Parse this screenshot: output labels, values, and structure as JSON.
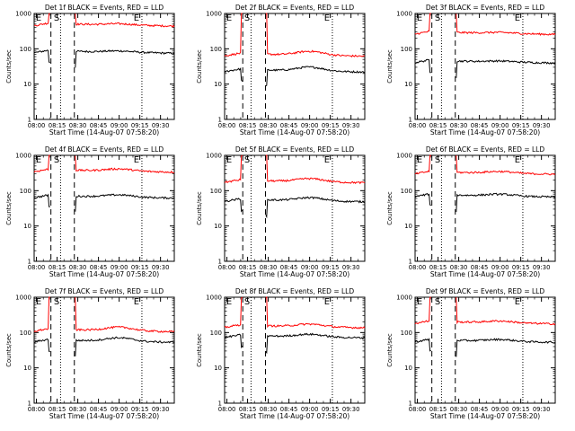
{
  "figure": {
    "x_tick_labels": [
      "08:00",
      "08:15",
      "08:30",
      "08:45",
      "09:00",
      "09:15",
      "09:30"
    ],
    "y_tick_labels": [
      "1",
      "10",
      "100",
      "1000"
    ],
    "xlabel": "Start Time (14-Aug-07 07:58:20)",
    "ylabel": "Counts/sec",
    "marker_E": "E",
    "marker_S": "S",
    "colors": {
      "events": "#000000",
      "lld": "#ff0000",
      "axes": "#000000"
    }
  },
  "chart_data": [
    {
      "type": "line",
      "title": "Det 1f BLACK = Events, RED = LLD",
      "xlabel": "Start Time (14-Aug-07 07:58:20)",
      "ylabel": "Counts/sec",
      "xlim": [
        "07:58:20",
        "09:40:00"
      ],
      "ylim": [
        1,
        1000
      ],
      "yscale": "log",
      "events_base": 85,
      "lld_base": 500,
      "hump": 0.08,
      "vertical_lines": {
        "dashed": [
          "08:10:30",
          "08:27:30"
        ],
        "dotted": [
          "08:17:30",
          "09:16:30"
        ]
      },
      "series": [
        {
          "name": "BLACK = Events",
          "x": [
            "07:58:20",
            "08:05",
            "08:09",
            "08:10",
            "08:27",
            "08:28",
            "08:40",
            "08:55",
            "09:05",
            "09:15",
            "09:25",
            "09:38"
          ],
          "y": [
            75,
            80,
            90,
            95,
            70,
            95,
            90,
            85,
            80,
            83,
            80,
            78
          ]
        },
        {
          "name": "RED = LLD",
          "x": [
            "07:58:20",
            "08:05",
            "08:09",
            "08:10",
            "08:27",
            "08:28",
            "08:40",
            "08:55",
            "09:05",
            "09:15",
            "09:25",
            "09:38"
          ],
          "y": [
            460,
            500,
            560,
            1000,
            1000,
            640,
            580,
            560,
            530,
            520,
            510,
            480
          ]
        }
      ]
    },
    {
      "type": "line",
      "title": "Det 2f BLACK = Events, RED = LLD",
      "xlabel": "Start Time (14-Aug-07 07:58:20)",
      "ylabel": "Counts/sec",
      "xlim": [
        "07:58:20",
        "09:40:00"
      ],
      "ylim": [
        1,
        1000
      ],
      "yscale": "log",
      "events_base": 25,
      "lld_base": 70,
      "hump": 0.28,
      "vertical_lines": {
        "dashed": [
          "08:11:30",
          "08:28:00"
        ],
        "dotted": [
          "08:17:30",
          "09:16:30"
        ]
      },
      "series": [
        {
          "name": "BLACK = Events",
          "x": [
            "07:58:20",
            "08:05",
            "08:09",
            "08:10",
            "08:28",
            "08:29",
            "08:40",
            "08:55",
            "09:05",
            "09:15",
            "09:25",
            "09:38"
          ],
          "y": [
            20,
            25,
            30,
            35,
            25,
            30,
            28,
            35,
            32,
            27,
            25,
            22
          ]
        },
        {
          "name": "RED = LLD",
          "x": [
            "07:58:20",
            "08:05",
            "08:09",
            "08:10",
            "08:28",
            "08:29",
            "08:40",
            "08:55",
            "09:05",
            "09:15",
            "09:25",
            "09:38"
          ],
          "y": [
            60,
            70,
            80,
            1000,
            1000,
            110,
            90,
            100,
            85,
            75,
            70,
            65
          ]
        }
      ]
    },
    {
      "type": "line",
      "title": "Det 3f BLACK = Events, RED = LLD",
      "xlabel": "Start Time (14-Aug-07 07:58:20)",
      "ylabel": "Counts/sec",
      "xlim": [
        "07:58:20",
        "09:40:00"
      ],
      "ylim": [
        1,
        1000
      ],
      "yscale": "log",
      "events_base": 45,
      "lld_base": 290,
      "hump": 0.06,
      "vertical_lines": {
        "dashed": [
          "08:10:30",
          "08:27:30"
        ],
        "dotted": [
          "08:17:30",
          "09:16:30"
        ]
      },
      "series": [
        {
          "name": "BLACK = Events",
          "x": [
            "07:58:20",
            "08:05",
            "08:09",
            "08:10",
            "08:27",
            "08:28",
            "08:40",
            "08:55",
            "09:05",
            "09:15",
            "09:25",
            "09:38"
          ],
          "y": [
            45,
            50,
            55,
            60,
            40,
            58,
            52,
            48,
            45,
            43,
            42,
            40
          ]
        },
        {
          "name": "RED = LLD",
          "x": [
            "07:58:20",
            "08:05",
            "08:09",
            "08:10",
            "08:27",
            "08:28",
            "08:40",
            "08:55",
            "09:05",
            "09:15",
            "09:25",
            "09:38"
          ],
          "y": [
            230,
            240,
            260,
            1000,
            1000,
            400,
            340,
            310,
            300,
            285,
            270,
            250
          ]
        }
      ]
    },
    {
      "type": "line",
      "title": "Det 4f BLACK = Events, RED = LLD",
      "xlabel": "Start Time (14-Aug-07 07:58:20)",
      "ylabel": "Counts/sec",
      "xlim": [
        "07:58:20",
        "09:40:00"
      ],
      "ylim": [
        1,
        1000
      ],
      "yscale": "log",
      "events_base": 70,
      "lld_base": 380,
      "hump": 0.15,
      "vertical_lines": {
        "dashed": [
          "08:10:30",
          "08:27:30"
        ],
        "dotted": [
          "08:17:30",
          "09:16:30"
        ]
      },
      "series": [
        {
          "name": "BLACK = Events",
          "x": [
            "07:58:20",
            "08:05",
            "08:09",
            "08:10",
            "08:27",
            "08:28",
            "08:40",
            "08:55",
            "09:05",
            "09:15",
            "09:25",
            "09:38"
          ],
          "y": [
            60,
            62,
            65,
            70,
            55,
            70,
            75,
            85,
            90,
            80,
            75,
            70
          ]
        },
        {
          "name": "RED = LLD",
          "x": [
            "07:58:20",
            "08:05",
            "08:09",
            "08:10",
            "08:27",
            "08:28",
            "08:40",
            "08:55",
            "09:05",
            "09:15",
            "09:25",
            "09:38"
          ],
          "y": [
            350,
            370,
            400,
            1000,
            1000,
            400,
            390,
            380,
            400,
            390,
            380,
            370
          ]
        }
      ]
    },
    {
      "type": "line",
      "title": "Det 5f BLACK = Events, RED = LLD",
      "xlabel": "Start Time (14-Aug-07 07:58:20)",
      "ylabel": "Counts/sec",
      "xlim": [
        "07:58:20",
        "09:40:00"
      ],
      "ylim": [
        1,
        1000
      ],
      "yscale": "log",
      "events_base": 55,
      "lld_base": 190,
      "hump": 0.22,
      "vertical_lines": {
        "dashed": [
          "08:11:30",
          "08:28:00"
        ],
        "dotted": [
          "08:17:30",
          "09:16:30"
        ]
      },
      "series": [
        {
          "name": "BLACK = Events",
          "x": [
            "07:58:20",
            "08:05",
            "08:09",
            "08:10",
            "08:28",
            "08:29",
            "08:40",
            "08:55",
            "09:05",
            "09:15",
            "09:25",
            "09:38"
          ],
          "y": [
            45,
            48,
            52,
            60,
            45,
            55,
            55,
            65,
            60,
            55,
            50,
            45
          ]
        },
        {
          "name": "RED = LLD",
          "x": [
            "07:58:20",
            "08:05",
            "08:09",
            "08:10",
            "08:28",
            "08:29",
            "08:40",
            "08:55",
            "09:05",
            "09:15",
            "09:25",
            "09:38"
          ],
          "y": [
            180,
            190,
            200,
            1000,
            1000,
            220,
            200,
            210,
            200,
            190,
            185,
            175
          ]
        }
      ]
    },
    {
      "type": "line",
      "title": "Det 6f BLACK = Events, RED = LLD",
      "xlabel": "Start Time (14-Aug-07 07:58:20)",
      "ylabel": "Counts/sec",
      "xlim": [
        "07:58:20",
        "09:40:00"
      ],
      "ylim": [
        1,
        1000
      ],
      "yscale": "log",
      "events_base": 75,
      "lld_base": 330,
      "hump": 0.12,
      "vertical_lines": {
        "dashed": [
          "08:10:30",
          "08:27:30"
        ],
        "dotted": [
          "08:17:30",
          "09:16:30"
        ]
      },
      "series": [
        {
          "name": "BLACK = Events",
          "x": [
            "07:58:20",
            "08:05",
            "08:09",
            "08:10",
            "08:27",
            "08:28",
            "08:40",
            "08:55",
            "09:05",
            "09:15",
            "09:25",
            "09:38"
          ],
          "y": [
            60,
            65,
            70,
            80,
            60,
            75,
            80,
            90,
            80,
            75,
            70,
            65
          ]
        },
        {
          "name": "RED = LLD",
          "x": [
            "07:58:20",
            "08:05",
            "08:09",
            "08:10",
            "08:27",
            "08:28",
            "08:40",
            "08:55",
            "09:05",
            "09:15",
            "09:25",
            "09:38"
          ],
          "y": [
            300,
            330,
            360,
            1000,
            1000,
            500,
            430,
            400,
            360,
            340,
            320,
            300
          ]
        }
      ]
    },
    {
      "type": "line",
      "title": "Det 7f BLACK = Events, RED = LLD",
      "xlabel": "Start Time (14-Aug-07 07:58:20)",
      "ylabel": "Counts/sec",
      "xlim": [
        "07:58:20",
        "09:40:00"
      ],
      "ylim": [
        1,
        1000
      ],
      "yscale": "log",
      "events_base": 60,
      "lld_base": 120,
      "hump": 0.25,
      "vertical_lines": {
        "dashed": [
          "08:10:30",
          "08:27:30"
        ],
        "dotted": [
          "08:17:30",
          "09:16:30"
        ]
      },
      "series": [
        {
          "name": "BLACK = Events",
          "x": [
            "07:58:20",
            "08:05",
            "08:09",
            "08:10",
            "08:27",
            "08:28",
            "08:40",
            "08:55",
            "09:05",
            "09:15",
            "09:25",
            "09:38"
          ],
          "y": [
            50,
            55,
            60,
            70,
            55,
            65,
            55,
            65,
            75,
            70,
            60,
            55
          ]
        },
        {
          "name": "RED = LLD",
          "x": [
            "07:58:20",
            "08:05",
            "08:09",
            "08:10",
            "08:27",
            "08:28",
            "08:40",
            "08:55",
            "09:05",
            "09:15",
            "09:25",
            "09:38"
          ],
          "y": [
            90,
            100,
            110,
            1000,
            1000,
            130,
            115,
            135,
            160,
            150,
            130,
            120
          ]
        }
      ]
    },
    {
      "type": "line",
      "title": "Det 8f BLACK = Events, RED = LLD",
      "xlabel": "Start Time (14-Aug-07 07:58:20)",
      "ylabel": "Counts/sec",
      "xlim": [
        "07:58:20",
        "09:40:00"
      ],
      "ylim": [
        1,
        1000
      ],
      "yscale": "log",
      "events_base": 80,
      "lld_base": 155,
      "hump": 0.18,
      "vertical_lines": {
        "dashed": [
          "08:11:30",
          "08:28:00"
        ],
        "dotted": [
          "08:17:30",
          "09:16:30"
        ]
      },
      "series": [
        {
          "name": "BLACK = Events",
          "x": [
            "07:58:20",
            "08:05",
            "08:09",
            "08:10",
            "08:28",
            "08:29",
            "08:40",
            "08:55",
            "09:05",
            "09:15",
            "09:25",
            "09:38"
          ],
          "y": [
            70,
            75,
            80,
            90,
            70,
            85,
            85,
            95,
            90,
            80,
            78,
            75
          ]
        },
        {
          "name": "RED = LLD",
          "x": [
            "07:58:20",
            "08:05",
            "08:09",
            "08:10",
            "08:28",
            "08:29",
            "08:40",
            "08:55",
            "09:05",
            "09:15",
            "09:25",
            "09:38"
          ],
          "y": [
            140,
            150,
            160,
            1000,
            1000,
            190,
            170,
            185,
            175,
            160,
            150,
            145
          ]
        }
      ]
    },
    {
      "type": "line",
      "title": "Det 9f BLACK = Events, RED = LLD",
      "xlabel": "Start Time (14-Aug-07 07:58:20)",
      "ylabel": "Counts/sec",
      "xlim": [
        "07:58:20",
        "09:40:00"
      ],
      "ylim": [
        1,
        1000
      ],
      "yscale": "log",
      "events_base": 60,
      "lld_base": 200,
      "hump": 0.12,
      "vertical_lines": {
        "dashed": [
          "08:10:30",
          "08:27:30"
        ],
        "dotted": [
          "08:17:30",
          "09:16:30"
        ]
      },
      "series": [
        {
          "name": "BLACK = Events",
          "x": [
            "07:58:20",
            "08:05",
            "08:09",
            "08:10",
            "08:27",
            "08:28",
            "08:40",
            "08:55",
            "09:05",
            "09:15",
            "09:25",
            "09:38"
          ],
          "y": [
            55,
            60,
            70,
            75,
            55,
            70,
            70,
            80,
            65,
            60,
            58,
            55
          ]
        },
        {
          "name": "RED = LLD",
          "x": [
            "07:58:20",
            "08:05",
            "08:09",
            "08:10",
            "08:27",
            "08:28",
            "08:40",
            "08:55",
            "09:05",
            "09:15",
            "09:25",
            "09:38"
          ],
          "y": [
            200,
            220,
            240,
            1000,
            1000,
            320,
            280,
            260,
            230,
            215,
            205,
            200
          ]
        }
      ]
    }
  ]
}
